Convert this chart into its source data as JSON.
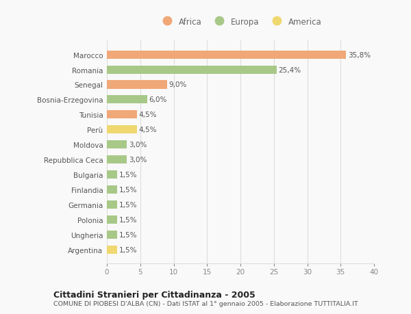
{
  "categories": [
    "Marocco",
    "Romania",
    "Senegal",
    "Bosnia-Erzegovina",
    "Tunisia",
    "Perù",
    "Moldova",
    "Repubblica Ceca",
    "Bulgaria",
    "Finlandia",
    "Germania",
    "Polonia",
    "Ungheria",
    "Argentina"
  ],
  "values": [
    35.8,
    25.4,
    9.0,
    6.0,
    4.5,
    4.5,
    3.0,
    3.0,
    1.5,
    1.5,
    1.5,
    1.5,
    1.5,
    1.5
  ],
  "labels": [
    "35,8%",
    "25,4%",
    "9,0%",
    "6,0%",
    "4,5%",
    "4,5%",
    "3,0%",
    "3,0%",
    "1,5%",
    "1,5%",
    "1,5%",
    "1,5%",
    "1,5%",
    "1,5%"
  ],
  "continent": [
    "Africa",
    "Europa",
    "Africa",
    "Europa",
    "Africa",
    "America",
    "Europa",
    "Europa",
    "Europa",
    "Europa",
    "Europa",
    "Europa",
    "Europa",
    "America"
  ],
  "colors": {
    "Africa": "#F0A878",
    "Europa": "#A8C888",
    "America": "#F0D870"
  },
  "legend_labels": [
    "Africa",
    "Europa",
    "America"
  ],
  "legend_colors": [
    "#F0A878",
    "#A8C888",
    "#F0D870"
  ],
  "xlim": [
    0,
    40
  ],
  "xticks": [
    0,
    5,
    10,
    15,
    20,
    25,
    30,
    35,
    40
  ],
  "title": "Cittadini Stranieri per Cittadinanza - 2005",
  "subtitle": "COMUNE DI PIOBESI D'ALBA (CN) - Dati ISTAT al 1° gennaio 2005 - Elaborazione TUTTITALIA.IT",
  "bg_color": "#f9f9f9",
  "grid_color": "#dddddd"
}
